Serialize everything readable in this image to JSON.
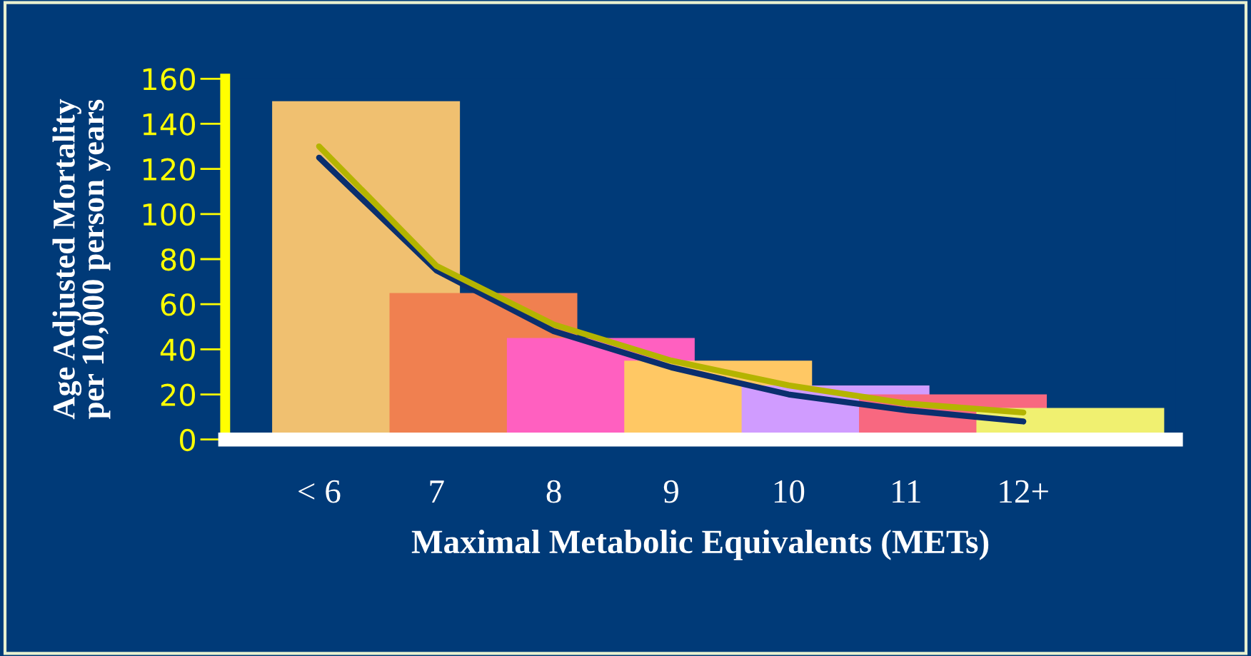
{
  "chart_data": {
    "type": "bar",
    "xlabel": "Maximal Metabolic Equivalents (METs)",
    "ylabel": "Age Adjusted Mortality\nper 10,000 person years",
    "categories": [
      "< 6",
      "7",
      "8",
      "9",
      "10",
      "11",
      "12+"
    ],
    "series": [
      {
        "values": [
          150,
          65,
          45,
          35,
          24,
          20,
          14
        ],
        "colors": [
          "#f0c070",
          "#f08050",
          "#ff60c0",
          "#ffc864",
          "#d09cff",
          "#f86880",
          "#f0f070"
        ]
      },
      {
        "type": "line",
        "color": "#0a2f6e",
        "values": [
          125,
          75,
          48,
          32,
          20,
          13,
          8
        ]
      },
      {
        "type": "line",
        "color": "#b4b400",
        "values": [
          130,
          77,
          51,
          35,
          24,
          16,
          12
        ]
      }
    ],
    "ylim": [
      0,
      160
    ],
    "yticks": [
      0,
      20,
      40,
      60,
      80,
      100,
      120,
      140,
      160
    ],
    "grid": false,
    "legend": false
  }
}
